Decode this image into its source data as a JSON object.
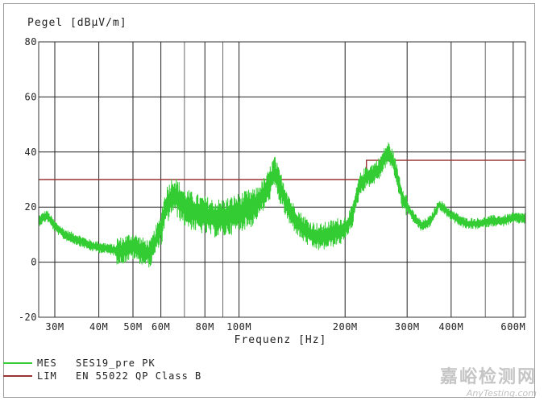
{
  "chart_data": {
    "type": "line",
    "ylabel": "Pegel [dBµV/m]",
    "xlabel": "Frequenz [Hz]",
    "x_scale": "log",
    "xlim": [
      27000000,
      650000000
    ],
    "ylim": [
      -20,
      80
    ],
    "y_ticks": [
      {
        "value": 80,
        "label": "80"
      },
      {
        "value": 60,
        "label": "60"
      },
      {
        "value": 40,
        "label": "40"
      },
      {
        "value": 20,
        "label": "20"
      },
      {
        "value": 0,
        "label": "0"
      },
      {
        "value": -20,
        "label": "-20"
      }
    ],
    "x_ticks": [
      {
        "value": 30000000,
        "label": "30M"
      },
      {
        "value": 40000000,
        "label": "40M"
      },
      {
        "value": 50000000,
        "label": "50M"
      },
      {
        "value": 60000000,
        "label": "60M"
      },
      {
        "value": 80000000,
        "label": "80M"
      },
      {
        "value": 100000000,
        "label": "100M"
      },
      {
        "value": 200000000,
        "label": "200M"
      },
      {
        "value": 300000000,
        "label": "300M"
      },
      {
        "value": 400000000,
        "label": "400M"
      },
      {
        "value": 600000000,
        "label": "600M"
      }
    ],
    "grid": true,
    "series": [
      {
        "name": "MES",
        "color": "#33cc33",
        "x": [
          27000000,
          28500000,
          30000000,
          32000000,
          35000000,
          38000000,
          42000000,
          46000000,
          50000000,
          53000000,
          56000000,
          58000000,
          60000000,
          62000000,
          65000000,
          70000000,
          75000000,
          80000000,
          85000000,
          90000000,
          95000000,
          100000000,
          110000000,
          120000000,
          126000000,
          130000000,
          140000000,
          150000000,
          160000000,
          170000000,
          180000000,
          190000000,
          200000000,
          210000000,
          220000000,
          230000000,
          240000000,
          250000000,
          265000000,
          275000000,
          290000000,
          310000000,
          330000000,
          350000000,
          370000000,
          400000000,
          440000000,
          480000000,
          520000000,
          560000000,
          600000000,
          650000000
        ],
        "y": [
          15,
          17,
          13,
          10,
          8,
          6,
          5,
          4,
          6,
          4,
          3,
          8,
          12,
          20,
          25,
          20,
          18,
          17,
          16,
          16,
          17,
          18,
          20,
          26,
          33,
          28,
          18,
          13,
          10,
          9,
          10,
          11,
          12,
          17,
          28,
          31,
          32,
          34,
          40,
          36,
          24,
          17,
          13,
          15,
          21,
          17,
          14,
          14,
          15,
          15,
          16,
          16
        ]
      },
      {
        "name": "LIM",
        "color": "#993333",
        "x": [
          27000000,
          230000000,
          230000000,
          650000000
        ],
        "y": [
          30,
          30,
          37,
          37
        ]
      }
    ],
    "legend": [
      {
        "key": "MES",
        "label": "SES19_pre PK",
        "color": "#33cc33"
      },
      {
        "key": "LIM",
        "label": "EN 55022 QP Class B",
        "color": "#993333"
      }
    ]
  },
  "watermark": {
    "main": "嘉峪检测网",
    "sub": "AnyTesting.com"
  }
}
